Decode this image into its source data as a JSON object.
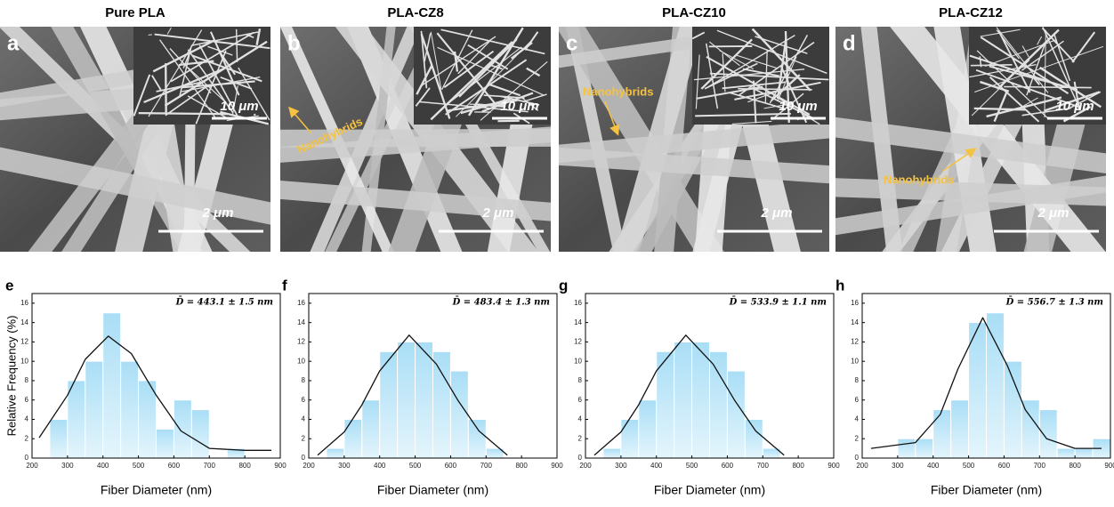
{
  "sem_panels": [
    {
      "title": "Pure PLA",
      "letter": "a",
      "inset_scale": "10 μm",
      "scale": "2 μm"
    },
    {
      "title": "PLA-CZ8",
      "letter": "b",
      "inset_scale": "10 μm",
      "scale": "2 μm",
      "annotation": "Nanohybrids"
    },
    {
      "title": "PLA-CZ10",
      "letter": "c",
      "inset_scale": "10 μm",
      "scale": "2 μm",
      "annotation": "Nanohybrids"
    },
    {
      "title": "PLA-CZ12",
      "letter": "d",
      "inset_scale": "10 μm",
      "scale": "2 μm",
      "annotation": "Nanohybrids"
    }
  ],
  "chart_data": [
    {
      "type": "histogram",
      "label": "e",
      "annotation": "D̄ = 443.1 ± 1.5 nm",
      "x_label": "Fiber Diameter (nm)",
      "y_label": "Relative Frequency (%)",
      "bins": [
        250,
        300,
        350,
        400,
        450,
        500,
        550,
        600,
        650,
        700,
        750,
        800
      ],
      "values": [
        4,
        8,
        10,
        15,
        10,
        8,
        3,
        6,
        5,
        0,
        1
      ],
      "fit": {
        "x": [
          220,
          300,
          350,
          415,
          480,
          550,
          620,
          700,
          800,
          875
        ],
        "y": [
          2.1,
          6.5,
          10.2,
          12.6,
          10.8,
          6.5,
          2.8,
          1.0,
          0.8,
          0.8
        ]
      },
      "color": "#bde6f8",
      "xlim": [
        200,
        900
      ],
      "ylim": [
        0,
        17
      ],
      "xticks": [
        200,
        300,
        400,
        500,
        600,
        700,
        800,
        900
      ],
      "yticks": [
        0,
        2,
        4,
        6,
        8,
        10,
        12,
        14,
        16
      ]
    },
    {
      "type": "histogram",
      "label": "f",
      "annotation": "D̄ = 483.4 ± 1.3 nm",
      "x_label": "Fiber Diameter (nm)",
      "bins": [
        250,
        300,
        350,
        400,
        450,
        500,
        550,
        600,
        650,
        700,
        750
      ],
      "values": [
        1,
        4,
        6,
        11,
        12,
        12,
        11,
        9,
        4,
        1
      ],
      "fit": {
        "x": [
          225,
          300,
          350,
          400,
          483,
          560,
          620,
          680,
          760
        ],
        "y": [
          0.3,
          2.7,
          5.5,
          9.0,
          12.7,
          9.7,
          6.0,
          2.8,
          0.3
        ]
      },
      "color": "#bde6f8",
      "xlim": [
        200,
        900
      ],
      "ylim": [
        0,
        17
      ],
      "xticks": [
        200,
        300,
        400,
        500,
        600,
        700,
        800,
        900
      ],
      "yticks": [
        0,
        2,
        4,
        6,
        8,
        10,
        12,
        14,
        16
      ]
    },
    {
      "type": "histogram",
      "label": "g",
      "annotation": "D̄ = 533.9 ± 1.1 nm",
      "x_label": "Fiber Diameter (nm)",
      "bins": [
        250,
        300,
        350,
        400,
        450,
        500,
        550,
        600,
        650,
        700,
        750
      ],
      "values": [
        1,
        4,
        6,
        11,
        12,
        12,
        11,
        9,
        4,
        1
      ],
      "fit": {
        "x": [
          225,
          300,
          350,
          400,
          483,
          560,
          620,
          680,
          760
        ],
        "y": [
          0.3,
          2.7,
          5.5,
          9.0,
          12.7,
          9.7,
          6.0,
          2.8,
          0.3
        ]
      },
      "color": "#bde6f8",
      "xlim": [
        200,
        900
      ],
      "ylim": [
        0,
        17
      ],
      "xticks": [
        200,
        300,
        400,
        500,
        600,
        700,
        800,
        900
      ],
      "yticks": [
        0,
        2,
        4,
        6,
        8,
        10,
        12,
        14,
        16
      ]
    },
    {
      "type": "histogram",
      "label": "h",
      "annotation": "D̄ = 556.7 ± 1.3 nm",
      "x_label": "Fiber Diameter (nm)",
      "bins": [
        300,
        350,
        400,
        450,
        500,
        550,
        600,
        650,
        700,
        750,
        800,
        850,
        900
      ],
      "values": [
        2,
        2,
        5,
        6,
        14,
        15,
        10,
        6,
        5,
        1,
        1,
        2
      ],
      "fit": {
        "x": [
          225,
          350,
          420,
          470,
          540,
          610,
          660,
          720,
          800,
          875
        ],
        "y": [
          1.0,
          1.6,
          4.5,
          9.2,
          14.5,
          9.5,
          5.0,
          2.0,
          1.0,
          1.0
        ]
      },
      "color": "#bde6f8",
      "xlim": [
        200,
        900
      ],
      "ylim": [
        0,
        17
      ],
      "xticks": [
        200,
        300,
        400,
        500,
        600,
        700,
        800,
        900
      ],
      "yticks": [
        0,
        2,
        4,
        6,
        8,
        10,
        12,
        14,
        16
      ]
    }
  ]
}
